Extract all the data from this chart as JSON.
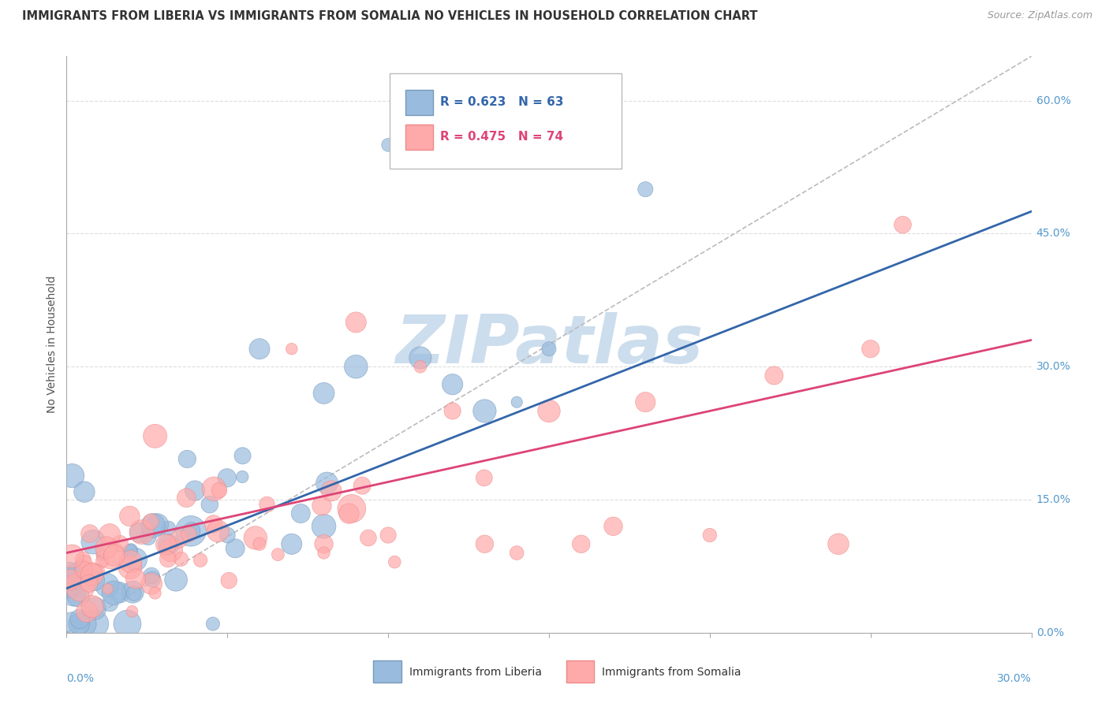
{
  "title": "IMMIGRANTS FROM LIBERIA VS IMMIGRANTS FROM SOMALIA NO VEHICLES IN HOUSEHOLD CORRELATION CHART",
  "source": "Source: ZipAtlas.com",
  "ylabel": "No Vehicles in Household",
  "ytick_labels": [
    "0.0%",
    "15.0%",
    "30.0%",
    "45.0%",
    "60.0%"
  ],
  "ytick_values": [
    0.0,
    0.15,
    0.3,
    0.45,
    0.6
  ],
  "xlim": [
    0.0,
    0.3
  ],
  "ylim": [
    0.0,
    0.65
  ],
  "liberia_R": 0.623,
  "liberia_N": 63,
  "somalia_R": 0.475,
  "somalia_N": 74,
  "liberia_color": "#99BBDD",
  "somalia_color": "#FFAAAA",
  "liberia_edge_color": "#7799BB",
  "somalia_edge_color": "#EE8888",
  "trendline_liberia_color": "#3366AA",
  "trendline_somalia_color": "#DD4477",
  "trendline_diag_color": "#BBBBBB",
  "background_color": "#FFFFFF",
  "watermark_color": "#CCDDED",
  "legend_entry1": "R = 0.623   N = 63",
  "legend_entry2": "R = 0.475   N = 74",
  "legend_color1": "#3366AA",
  "legend_color2": "#DD4477"
}
